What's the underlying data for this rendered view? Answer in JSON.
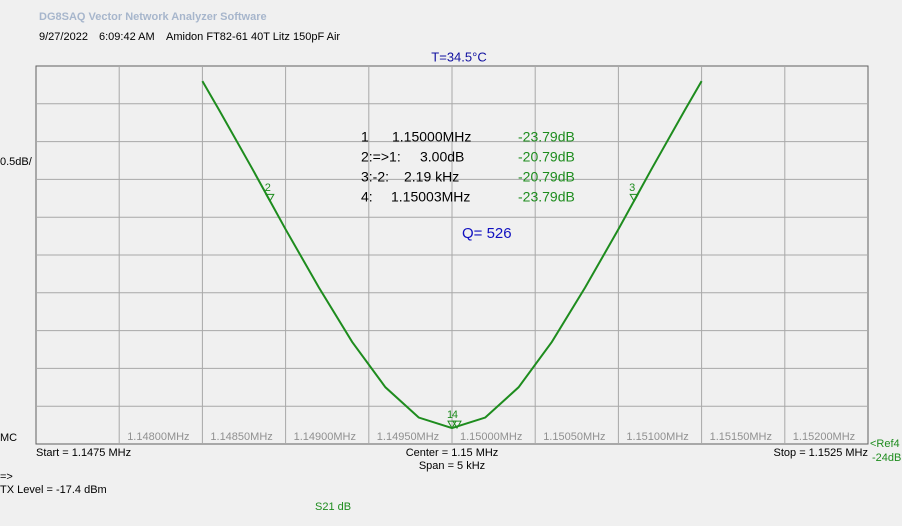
{
  "header": {
    "title": "DG8SAQ Vector Network Analyzer Software",
    "date": "9/27/2022",
    "time": "6:09:42 AM",
    "description": "Amidon FT82-61 40T Litz 150pF Air"
  },
  "chart_data": {
    "type": "line",
    "temperature": "T=34.5°C",
    "scale_label": "0.5dB/",
    "left_label": "MC",
    "ref_label": "<Ref4",
    "ref_value": "-24dB",
    "start_label": "Start = 1.1475 MHz",
    "center_label": "Center = 1.15 MHz",
    "span_label": "Span = 5 kHz",
    "stop_label": "Stop = 1.1525 MHz",
    "arrow_label": "=>",
    "tx_level": "TX Level = -17.4 dBm",
    "q_label": "Q= 526",
    "xlim": [
      1.1475,
      1.1525
    ],
    "xticks": [
      {
        "value": 1.148,
        "label": "1.14800MHz"
      },
      {
        "value": 1.1485,
        "label": "1.14850MHz"
      },
      {
        "value": 1.149,
        "label": "1.14900MHz"
      },
      {
        "value": 1.1495,
        "label": "1.14950MHz"
      },
      {
        "value": 1.15,
        "label": "1.15000MHz"
      },
      {
        "value": 1.1505,
        "label": "1.15050MHz"
      },
      {
        "value": 1.151,
        "label": "1.15100MHz"
      },
      {
        "value": 1.1515,
        "label": "1.15150MHz"
      },
      {
        "value": 1.152,
        "label": "1.15200MHz"
      }
    ],
    "ylim": [
      -24,
      -19
    ],
    "yticks": [
      -23.5,
      -23,
      -22.5,
      -22,
      -21.5,
      -21,
      -20.5,
      -20,
      -19.5
    ],
    "grid": true,
    "x": [
      1.1485,
      1.1486,
      1.1488,
      1.149,
      1.1492,
      1.1494,
      1.1496,
      1.1498,
      1.15,
      1.1502,
      1.1504,
      1.1506,
      1.1508,
      1.151,
      1.1512,
      1.1514,
      1.1515
    ],
    "series": [
      {
        "name": "S21  dB",
        "color": "#1e8c1e",
        "values": [
          -19.2,
          -19.58,
          -20.36,
          -21.16,
          -21.93,
          -22.65,
          -23.25,
          -23.65,
          -23.79,
          -23.65,
          -23.25,
          -22.65,
          -21.93,
          -21.16,
          -20.36,
          -19.58,
          -19.2
        ]
      }
    ],
    "markers": [
      {
        "label": "1",
        "x": 1.15,
        "y": -23.79
      },
      {
        "label": "2",
        "x": 1.148905,
        "y": -20.79
      },
      {
        "label": "3",
        "x": 1.151095,
        "y": -20.79
      },
      {
        "label": "4",
        "x": 1.15003,
        "y": -23.79
      }
    ],
    "readout": [
      [
        "1",
        "1.15000MHz",
        "-23.79dB"
      ],
      [
        "2:=>1:",
        "3.00dB",
        "-20.79dB"
      ],
      [
        "3:-2:",
        "2.19 kHz",
        "-20.79dB"
      ],
      [
        "4:",
        "1.15003MHz",
        "-23.79dB"
      ]
    ]
  }
}
